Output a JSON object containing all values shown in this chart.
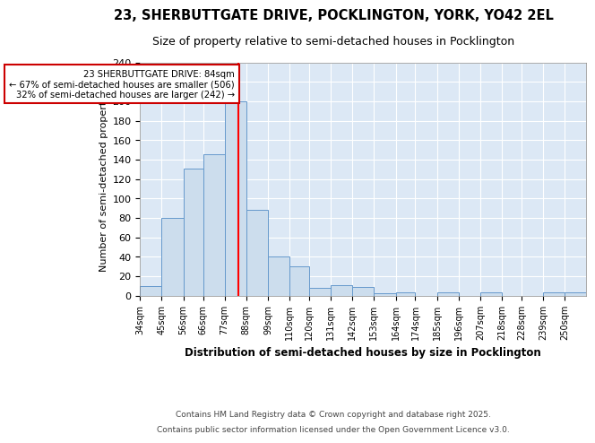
{
  "title_line1": "23, SHERBUTTGATE DRIVE, POCKLINGTON, YORK, YO42 2EL",
  "title_line2": "Size of property relative to semi-detached houses in Pocklington",
  "xlabel": "Distribution of semi-detached houses by size in Pocklington",
  "ylabel": "Number of semi-detached properties",
  "bin_edges": [
    34,
    45,
    56,
    66,
    77,
    88,
    99,
    110,
    120,
    131,
    142,
    153,
    164,
    174,
    185,
    196,
    207,
    218,
    228,
    239,
    250
  ],
  "bin_labels": [
    "34sqm",
    "45sqm",
    "56sqm",
    "66sqm",
    "77sqm",
    "88sqm",
    "99sqm",
    "110sqm",
    "120sqm",
    "131sqm",
    "142sqm",
    "153sqm",
    "164sqm",
    "174sqm",
    "185sqm",
    "196sqm",
    "207sqm",
    "218sqm",
    "228sqm",
    "239sqm",
    "250sqm"
  ],
  "bar_heights": [
    10,
    80,
    131,
    145,
    200,
    88,
    40,
    30,
    8,
    11,
    9,
    2,
    3,
    0,
    3,
    0,
    3,
    0,
    0,
    3,
    3
  ],
  "bar_color": "#ccdded",
  "bar_edge_color": "#6699cc",
  "red_line_x": 84,
  "property_label": "23 SHERBUTTGATE DRIVE: 84sqm",
  "smaller_label": "← 67% of semi-detached houses are smaller (506)",
  "larger_label": "32% of semi-detached houses are larger (242) →",
  "annotation_box_color": "#ffffff",
  "annotation_box_edge": "#cc0000",
  "ylim": [
    0,
    240
  ],
  "yticks": [
    0,
    20,
    40,
    60,
    80,
    100,
    120,
    140,
    160,
    180,
    200,
    220,
    240
  ],
  "background_color": "#dce8f5",
  "footer_line1": "Contains HM Land Registry data © Crown copyright and database right 2025.",
  "footer_line2": "Contains public sector information licensed under the Open Government Licence v3.0."
}
